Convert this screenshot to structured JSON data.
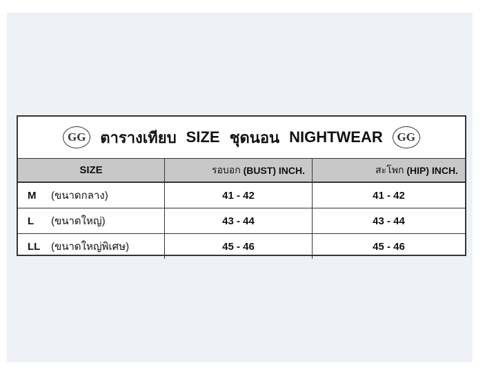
{
  "title": {
    "prefix": "ตารางเทียบ",
    "size": "SIZE",
    "middle": "ชุดนอน",
    "suffix": "NIGHTWEAR",
    "logo_text": "GG"
  },
  "header": {
    "size": "SIZE",
    "bust_thai": "รอบอก",
    "bust": "(BUST) INCH.",
    "hip_thai": "สะโพก",
    "hip": "(HIP) INCH."
  },
  "rows": [
    {
      "code": "M",
      "desc": "(ขนาดกลาง)",
      "bust": "41 - 42",
      "hip": "41 - 42"
    },
    {
      "code": "L",
      "desc": "(ขนาดใหญ่)",
      "bust": "43 - 44",
      "hip": "43 - 44"
    },
    {
      "code": "LL",
      "desc": "(ขนาดใหญ่พิเศษ)",
      "bust": "45 - 46",
      "hip": "45 - 46"
    }
  ],
  "colors": {
    "panel": "#eef2f7",
    "header_bg": "#c8c8c8",
    "border": "#333333"
  }
}
